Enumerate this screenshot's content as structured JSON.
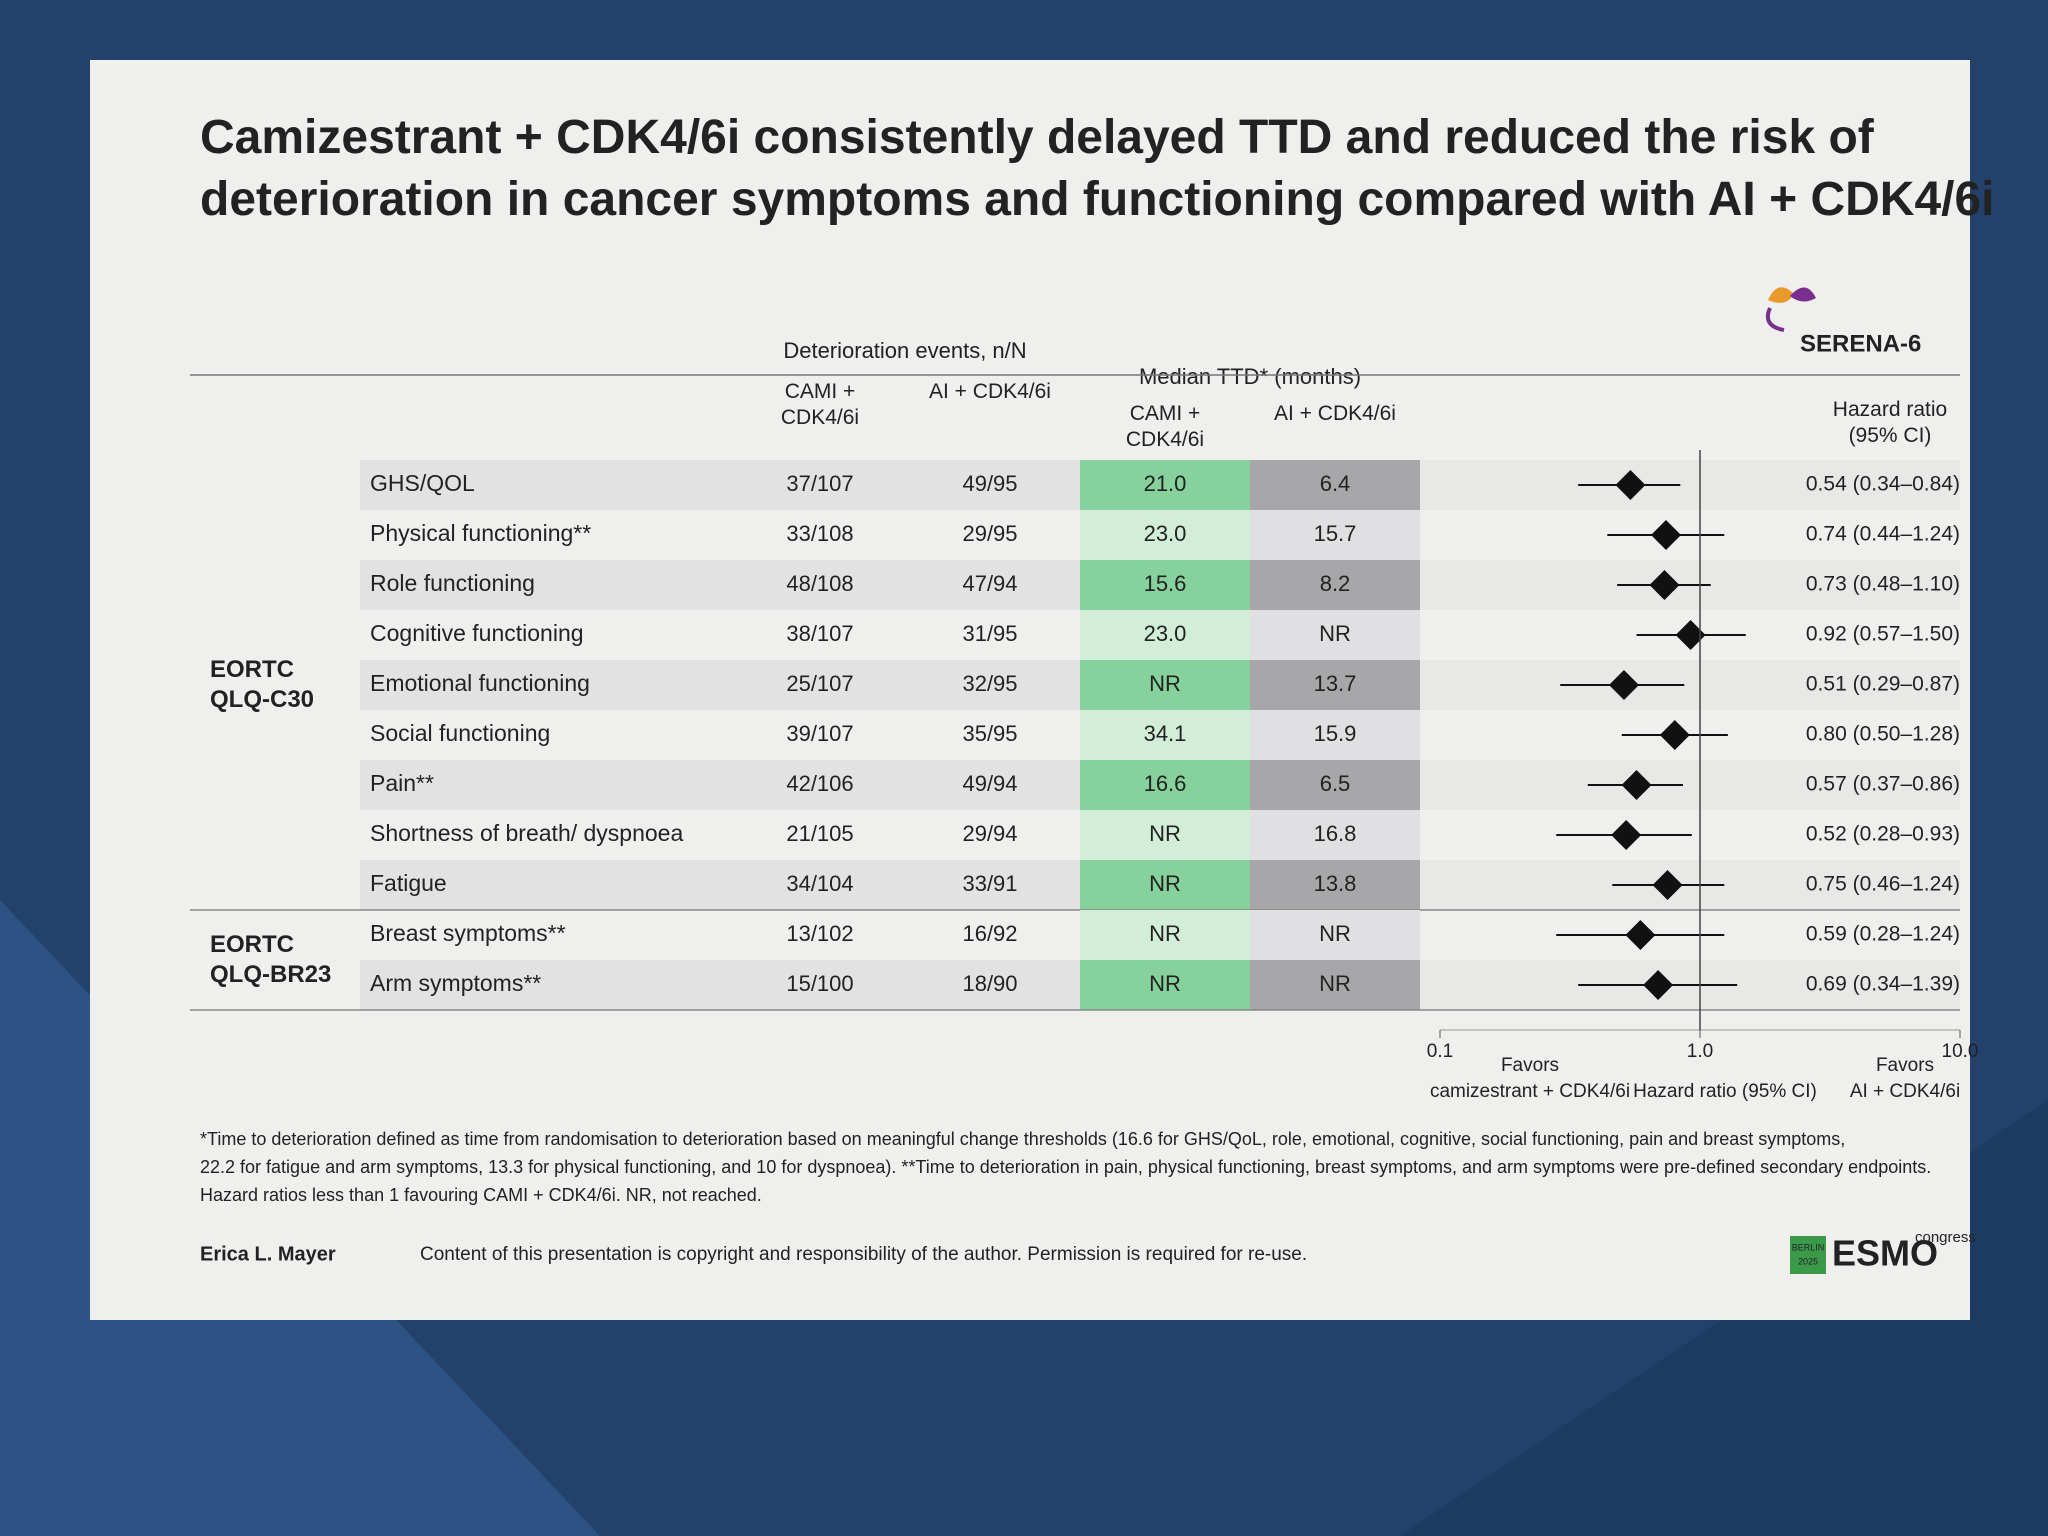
{
  "slide": {
    "title": [
      "Camizestrant + CDK4/6i consistently delayed TTD and reduced the risk of",
      "deterioration in cancer symptoms and functioning compared with AI + CDK4/6i"
    ],
    "logo": "SERENA-6",
    "footnote": [
      "*Time to deterioration defined as time from randomisation to deterioration based on meaningful change thresholds (16.6 for GHS/QoL, role, emotional, cognitive, social functioning, pain and breast symptoms,",
      "22.2 for fatigue and arm symptoms, 13.3 for physical functioning, and 10 for dyspnoea). **Time to deterioration in pain, physical functioning, breast symptoms, and arm symptoms were pre-defined secondary endpoints.",
      "Hazard ratios less than 1 favouring CAMI + CDK4/6i. NR, not reached."
    ],
    "author": "Erica L. Mayer",
    "copyright": "Content of this presentation is copyright and responsibility of the author. Permission is required for re-use.",
    "congress": {
      "city": "BERLIN",
      "year": "2025",
      "brand": "ESMO",
      "tag": "congress"
    }
  },
  "table": {
    "events_header": "Deterioration events, n/N",
    "median_header": "Median TTD* (months)",
    "arm_headers": [
      [
        "CAMI +",
        "CDK4/6i"
      ],
      [
        "AI + CDK4/6i"
      ]
    ],
    "cami_colors": [
      "#86d19c",
      "#d2eed9"
    ],
    "ai_colors": [
      "#a7a7aa",
      "#e0e0e2"
    ],
    "stripe_color": "#e2e2e2",
    "groups": [
      {
        "label": [
          "EORTC",
          "QLQ-C30"
        ],
        "rows": [
          {
            "events": [
              "37/107",
              "49/95"
            ],
            "median": [
              "21.0",
              "6.4"
            ]
          },
          {
            "events": [
              "33/108",
              "29/95"
            ],
            "median": [
              "23.0",
              "15.7"
            ]
          },
          {
            "events": [
              "48/108",
              "47/94"
            ],
            "median": [
              "15.6",
              "8.2"
            ]
          },
          {
            "events": [
              "38/107",
              "31/95"
            ],
            "median": [
              "23.0",
              "NR"
            ]
          },
          {
            "events": [
              "25/107",
              "32/95"
            ],
            "median": [
              "NR",
              "13.7"
            ]
          },
          {
            "events": [
              "39/107",
              "35/95"
            ],
            "median": [
              "34.1",
              "15.9"
            ]
          },
          {
            "events": [
              "42/106",
              "49/94"
            ],
            "median": [
              "16.6",
              "6.5"
            ]
          },
          {
            "events": [
              "21/105",
              "29/94"
            ],
            "median": [
              "NR",
              "16.8"
            ]
          },
          {
            "events": [
              "34/104",
              "33/91"
            ],
            "median": [
              "NR",
              "13.8"
            ]
          }
        ]
      },
      {
        "label": [
          "EORTC",
          "QLQ-BR23"
        ],
        "rows": [
          {
            "events": [
              "13/102",
              "16/92"
            ],
            "median": [
              "NR",
              "NR"
            ]
          },
          {
            "events": [
              "15/100",
              "18/90"
            ],
            "median": [
              "NR",
              "NR"
            ]
          }
        ]
      }
    ]
  },
  "chart_data": {
    "type": "forest",
    "categories": [
      "GHS/QOL",
      "Physical functioning**",
      "Role functioning",
      "Cognitive functioning",
      "Emotional functioning",
      "Social functioning",
      "Pain**",
      "Shortness of breath/ dyspnoea",
      "Fatigue",
      "Breast symptoms**",
      "Arm symptoms**"
    ],
    "values": [
      0.54,
      0.74,
      0.73,
      0.92,
      0.51,
      0.8,
      0.57,
      0.52,
      0.75,
      0.59,
      0.69
    ],
    "ci_low": [
      0.34,
      0.44,
      0.48,
      0.57,
      0.29,
      0.5,
      0.37,
      0.28,
      0.46,
      0.28,
      0.34
    ],
    "ci_high": [
      0.84,
      1.24,
      1.1,
      1.5,
      0.87,
      1.28,
      0.86,
      0.93,
      1.24,
      1.24,
      1.39
    ],
    "value_labels": [
      "0.54 (0.34–0.84)",
      "0.74 (0.44–1.24)",
      "0.73 (0.48–1.10)",
      "0.92 (0.57–1.50)",
      "0.51 (0.29–0.87)",
      "0.80 (0.50–1.28)",
      "0.57 (0.37–0.86)",
      "0.52 (0.28–0.93)",
      "0.75 (0.46–1.24)",
      "0.59 (0.28–1.24)",
      "0.69 (0.34–1.39)"
    ],
    "column_header": [
      "Hazard ratio",
      "(95% CI)"
    ],
    "xlabel": "Hazard ratio (95% CI)",
    "favors": [
      [
        "Favors",
        "camizestrant + CDK4/6i"
      ],
      [
        "Favors",
        "AI + CDK4/6i"
      ]
    ],
    "xscale": "log",
    "xlim": [
      0.1,
      10
    ],
    "xticks": [
      0.1,
      {
        "value": 1,
        "label": "1.0"
      },
      {
        "value": 10,
        "label": "10.0"
      }
    ],
    "reference_line": 1,
    "color": "#111111"
  }
}
